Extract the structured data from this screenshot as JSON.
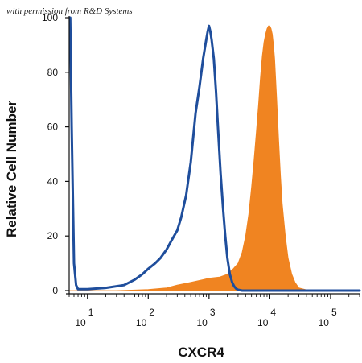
{
  "watermark": "with permission from R&D Systems",
  "chart_data": {
    "type": "area",
    "xlabel": "CXCR4",
    "ylabel": "Relative Cell Number",
    "xscale": "log",
    "xlim": [
      5,
      300000
    ],
    "ylim": [
      0,
      100
    ],
    "y_ticks": [
      "0",
      "20",
      "40",
      "60",
      "80",
      "100"
    ],
    "x_ticks": [
      {
        "value": 10,
        "base": "10",
        "exp": "1"
      },
      {
        "value": 100,
        "base": "10",
        "exp": "2"
      },
      {
        "value": 1000,
        "base": "10",
        "exp": "3"
      },
      {
        "value": 10000,
        "base": "10",
        "exp": "4"
      },
      {
        "value": 100000,
        "base": "10",
        "exp": "5"
      }
    ],
    "grid": false,
    "series": [
      {
        "role": "isotype-outline",
        "color": "#1f4e9c",
        "x": [
          5.2,
          5.5,
          6,
          6.5,
          7,
          10,
          20,
          40,
          60,
          80,
          100,
          130,
          160,
          200,
          250,
          300,
          350,
          420,
          500,
          600,
          700,
          800,
          900,
          950,
          1000,
          1050,
          1100,
          1200,
          1300,
          1400,
          1550,
          1700,
          1850,
          2000,
          2200,
          2400,
          2600,
          2800,
          3000,
          3500,
          5000,
          10000,
          50000,
          300000
        ],
        "values": [
          100,
          60,
          10,
          2,
          0.5,
          0.5,
          1,
          2,
          4,
          6,
          8,
          10,
          12,
          15,
          19,
          22,
          27,
          35,
          47,
          65,
          75,
          85,
          92,
          95,
          97,
          95,
          92,
          85,
          73,
          60,
          43,
          30,
          20,
          12,
          6,
          3,
          1.5,
          0.7,
          0.3,
          0,
          0,
          0,
          0,
          0
        ]
      },
      {
        "role": "stained-filled",
        "color": "#f08421",
        "x": [
          5,
          10,
          30,
          60,
          100,
          200,
          300,
          500,
          800,
          1000,
          1500,
          2000,
          2500,
          3000,
          3500,
          4000,
          4500,
          5000,
          5500,
          6000,
          6500,
          7000,
          7500,
          8000,
          8500,
          9000,
          9500,
          10000,
          10500,
          11000,
          11500,
          12000,
          13000,
          14000,
          15000,
          16000,
          18000,
          20000,
          23000,
          26000,
          30000,
          40000,
          60000,
          300000
        ],
        "values": [
          0,
          0,
          0,
          0.2,
          0.4,
          1,
          2,
          3,
          4,
          4.5,
          5,
          6,
          8,
          10,
          14,
          20,
          28,
          38,
          48,
          58,
          68,
          78,
          86,
          91,
          94,
          96,
          97,
          97,
          96,
          94,
          90,
          85,
          70,
          55,
          42,
          32,
          20,
          12,
          6,
          3,
          1,
          0.3,
          0,
          0
        ]
      }
    ]
  }
}
